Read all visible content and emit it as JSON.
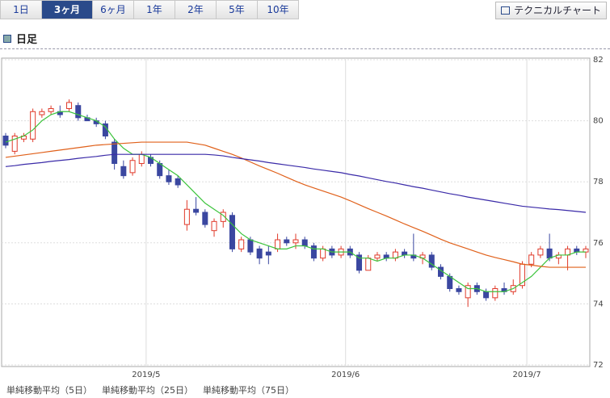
{
  "tabs": [
    "1日",
    "3ヶ月",
    "6ヶ月",
    "1年",
    "2年",
    "5年",
    "10年"
  ],
  "button": "テクニカルチャート",
  "header": "日足",
  "chart_data": {
    "type": "candlestick",
    "categories": [
      null,
      null,
      null,
      null,
      null,
      null,
      null,
      null,
      null,
      null,
      null,
      null,
      null,
      null,
      null,
      null,
      "2019/5",
      null,
      null,
      null,
      null,
      null,
      null,
      null,
      null,
      null,
      null,
      null,
      null,
      null,
      null,
      null,
      null,
      null,
      null,
      null,
      null,
      null,
      "2019/6",
      null,
      null,
      null,
      null,
      null,
      null,
      null,
      null,
      null,
      null,
      null,
      null,
      null,
      null,
      null,
      null,
      null,
      null,
      null,
      "2019/7",
      null,
      null,
      null,
      null,
      null,
      null
    ],
    "open": [
      79.5,
      79.0,
      79.4,
      79.4,
      80.2,
      80.3,
      80.3,
      80.4,
      80.5,
      80.1,
      80.0,
      79.9,
      79.3,
      78.5,
      78.3,
      78.6,
      78.8,
      78.6,
      78.2,
      78.1,
      76.6,
      77.1,
      77.0,
      76.4,
      76.7,
      76.9,
      75.8,
      76.1,
      75.8,
      75.7,
      75.8,
      76.1,
      76.0,
      76.1,
      75.9,
      75.5,
      75.8,
      75.6,
      75.8,
      75.6,
      75.1,
      75.5,
      75.6,
      75.5,
      75.7,
      75.6,
      75.5,
      75.6,
      75.2,
      74.9,
      74.5,
      74.2,
      74.6,
      74.4,
      74.2,
      74.5,
      74.4,
      74.6,
      75.3,
      75.6,
      75.8,
      75.5,
      75.6,
      75.8,
      75.7
    ],
    "high": [
      79.6,
      79.6,
      79.6,
      80.4,
      80.4,
      80.5,
      80.5,
      80.7,
      80.6,
      80.2,
      80.1,
      80.0,
      79.4,
      78.7,
      78.8,
      79.0,
      78.9,
      78.7,
      78.4,
      78.2,
      77.4,
      77.5,
      77.1,
      76.8,
      77.1,
      77.0,
      76.2,
      76.2,
      75.9,
      75.9,
      76.3,
      76.2,
      76.3,
      76.2,
      76.0,
      75.9,
      75.9,
      75.9,
      75.9,
      75.7,
      75.6,
      75.7,
      75.7,
      75.8,
      75.8,
      76.3,
      75.7,
      75.7,
      75.3,
      75.0,
      74.6,
      74.7,
      74.7,
      74.5,
      74.6,
      74.7,
      74.8,
      75.4,
      75.7,
      75.9,
      76.3,
      75.7,
      75.9,
      75.9,
      75.9
    ],
    "low": [
      79.1,
      78.9,
      79.3,
      79.3,
      80.1,
      80.2,
      80.1,
      80.3,
      80.0,
      80.0,
      79.8,
      79.4,
      78.4,
      78.1,
      78.2,
      78.5,
      78.5,
      78.1,
      77.9,
      77.8,
      76.4,
      76.9,
      76.5,
      76.2,
      76.5,
      75.7,
      75.7,
      75.6,
      75.3,
      75.3,
      75.7,
      75.9,
      75.8,
      75.8,
      75.4,
      75.4,
      75.5,
      75.5,
      75.5,
      75.0,
      75.1,
      75.4,
      75.4,
      75.4,
      75.5,
      75.4,
      75.3,
      75.1,
      74.8,
      74.4,
      74.3,
      73.9,
      74.3,
      74.1,
      74.1,
      74.3,
      74.3,
      74.5,
      75.2,
      75.5,
      75.4,
      75.3,
      75.1,
      75.6,
      75.5
    ],
    "close": [
      79.2,
      79.5,
      79.5,
      80.3,
      80.3,
      80.4,
      80.2,
      80.6,
      80.1,
      80.0,
      79.9,
      79.5,
      78.6,
      78.2,
      78.7,
      78.9,
      78.6,
      78.2,
      78.0,
      77.9,
      77.1,
      77.0,
      76.6,
      76.7,
      77.0,
      75.8,
      76.1,
      75.7,
      75.5,
      75.6,
      76.1,
      76.0,
      76.1,
      75.9,
      75.5,
      75.8,
      75.6,
      75.8,
      75.6,
      75.1,
      75.5,
      75.6,
      75.5,
      75.7,
      75.6,
      75.5,
      75.6,
      75.2,
      74.9,
      74.5,
      74.4,
      74.6,
      74.4,
      74.2,
      74.5,
      74.4,
      74.6,
      75.3,
      75.6,
      75.8,
      75.5,
      75.6,
      75.8,
      75.7,
      75.8
    ],
    "up_color": "#e03a2a",
    "down_color": "#3a47a0",
    "series": [
      {
        "name": "単純移動平均（5日）",
        "color": "#3cc43c",
        "values": [
          79.3,
          79.4,
          79.5,
          79.7,
          80.0,
          80.2,
          80.3,
          80.3,
          80.2,
          80.1,
          80.0,
          79.8,
          79.4,
          79.1,
          78.9,
          78.9,
          78.8,
          78.6,
          78.4,
          78.2,
          77.9,
          77.6,
          77.3,
          77.1,
          76.9,
          76.6,
          76.3,
          76.1,
          76.0,
          75.9,
          75.8,
          75.8,
          75.9,
          75.9,
          75.8,
          75.8,
          75.7,
          75.7,
          75.7,
          75.5,
          75.5,
          75.4,
          75.5,
          75.5,
          75.6,
          75.6,
          75.5,
          75.3,
          75.1,
          74.9,
          74.7,
          74.5,
          74.5,
          74.4,
          74.4,
          74.4,
          74.5,
          74.7,
          74.9,
          75.2,
          75.5,
          75.6,
          75.6,
          75.7,
          75.7
        ]
      },
      {
        "name": "単純移動平均（25日）",
        "color": "#e0601a",
        "values": [
          78.8,
          78.84,
          78.88,
          78.92,
          78.96,
          79.0,
          79.04,
          79.08,
          79.12,
          79.16,
          79.2,
          79.22,
          79.24,
          79.26,
          79.28,
          79.3,
          79.3,
          79.3,
          79.3,
          79.3,
          79.3,
          79.25,
          79.2,
          79.1,
          79.0,
          78.9,
          78.78,
          78.65,
          78.52,
          78.4,
          78.28,
          78.15,
          78.02,
          77.9,
          77.8,
          77.7,
          77.6,
          77.5,
          77.38,
          77.25,
          77.12,
          77.0,
          76.88,
          76.75,
          76.62,
          76.5,
          76.38,
          76.25,
          76.12,
          76.0,
          75.9,
          75.8,
          75.7,
          75.6,
          75.52,
          75.45,
          75.38,
          75.3,
          75.27,
          75.23,
          75.2,
          75.2,
          75.2,
          75.2,
          75.2
        ]
      },
      {
        "name": "単純移動平均（75日）",
        "color": "#3a2aa8",
        "values": [
          78.5,
          78.53,
          78.57,
          78.6,
          78.63,
          78.67,
          78.7,
          78.73,
          78.77,
          78.8,
          78.83,
          78.87,
          78.9,
          78.9,
          78.9,
          78.9,
          78.9,
          78.9,
          78.9,
          78.9,
          78.9,
          78.9,
          78.9,
          78.88,
          78.85,
          78.8,
          78.76,
          78.72,
          78.68,
          78.63,
          78.59,
          78.55,
          78.51,
          78.47,
          78.42,
          78.38,
          78.34,
          78.3,
          78.24,
          78.19,
          78.13,
          78.07,
          78.01,
          77.96,
          77.9,
          77.84,
          77.79,
          77.73,
          77.67,
          77.61,
          77.56,
          77.5,
          77.45,
          77.4,
          77.35,
          77.3,
          77.25,
          77.2,
          77.17,
          77.14,
          77.11,
          77.09,
          77.06,
          77.03,
          77.0
        ]
      }
    ],
    "ylim": [
      72,
      82
    ],
    "yticks": [
      72,
      74,
      76,
      78,
      80,
      82
    ],
    "grid": true
  }
}
